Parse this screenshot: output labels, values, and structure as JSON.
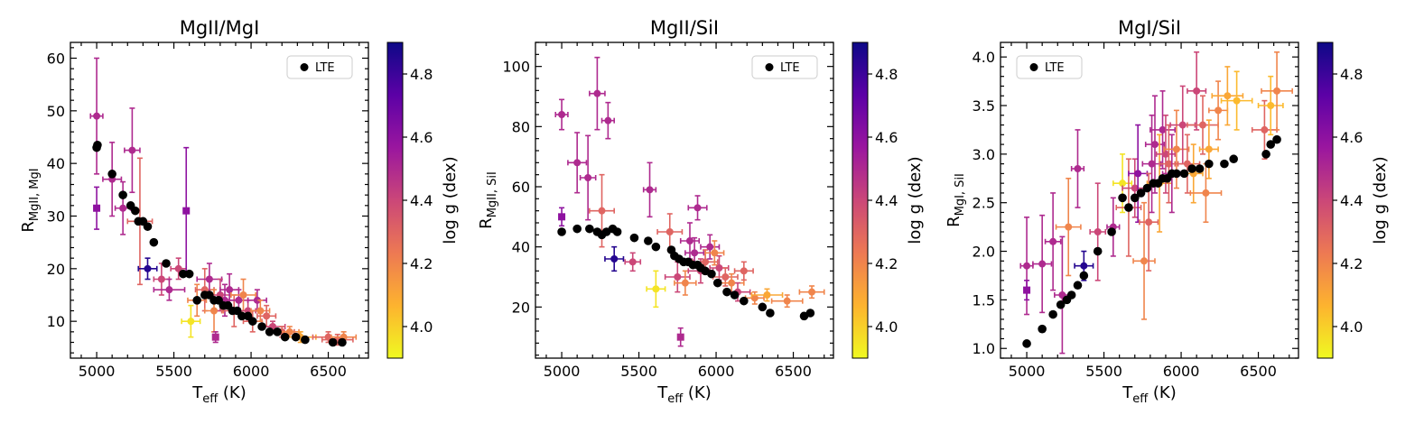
{
  "colorbar": {
    "label": "log g (dex)",
    "range": [
      3.9,
      4.9
    ],
    "ticks": [
      "4.0",
      "4.2",
      "4.4",
      "4.6",
      "4.8"
    ],
    "tick_values": [
      4.0,
      4.2,
      4.4,
      4.6,
      4.8
    ],
    "colormap": [
      "#f0f921",
      "#fdb32f",
      "#ed7953",
      "#cb4778",
      "#9a169f",
      "#5c01a6",
      "#0d0887"
    ]
  },
  "chart_data": [
    {
      "type": "scatter",
      "title": "MgII/MgI",
      "xlabel_main": "T",
      "xlabel_sub": "eff",
      "xlabel_unit": " (K)",
      "ylabel_main": "R",
      "ylabel_sub": "MgII, MgI",
      "xlim": [
        4830,
        6760
      ],
      "ylim": [
        3,
        63
      ],
      "xticks": [
        5000,
        5500,
        6000,
        6500
      ],
      "xticklabels": [
        "5000",
        "5500",
        "6000",
        "6500"
      ],
      "yticks": [
        10,
        20,
        30,
        40,
        50,
        60
      ],
      "yticklabels": [
        "10",
        "20",
        "30",
        "40",
        "50",
        "60"
      ],
      "legend": {
        "label": "LTE",
        "loc": "upper right"
      },
      "lte": {
        "x": [
          5000,
          5005,
          5100,
          5170,
          5220,
          5250,
          5270,
          5300,
          5330,
          5370,
          5450,
          5560,
          5600,
          5650,
          5700,
          5730,
          5760,
          5790,
          5820,
          5850,
          5880,
          5910,
          5940,
          5980,
          6010,
          6070,
          6120,
          6170,
          6220,
          6290,
          6350,
          6530,
          6590
        ],
        "y": [
          43,
          43.5,
          38,
          34,
          32,
          31,
          29,
          29,
          28,
          25,
          21,
          19,
          19,
          14,
          15,
          15,
          14,
          14,
          13,
          13,
          12,
          12,
          11,
          11,
          10,
          9,
          8,
          8,
          7,
          7,
          6.5,
          6,
          6
        ]
      },
      "obs": {
        "x": [
          5000,
          5000,
          5100,
          5170,
          5230,
          5280,
          5330,
          5420,
          5470,
          5530,
          5580,
          5610,
          5650,
          5700,
          5730,
          5760,
          5770,
          5800,
          5830,
          5860,
          5890,
          5920,
          5950,
          5980,
          6010,
          6040,
          6060,
          6100,
          6140,
          6200,
          6250,
          6320,
          6500,
          6560,
          6600
        ],
        "y": [
          49,
          31.5,
          37,
          31.5,
          42.5,
          29,
          20,
          18,
          16,
          20,
          31,
          10,
          14,
          16,
          18,
          12,
          7,
          15,
          14,
          16,
          12,
          14,
          15,
          12,
          10,
          14,
          12,
          11,
          9,
          8,
          8,
          7,
          7,
          6.5,
          7
        ],
        "xerr": [
          40,
          0,
          60,
          50,
          50,
          80,
          60,
          50,
          100,
          50,
          0,
          60,
          60,
          60,
          80,
          60,
          0,
          70,
          60,
          60,
          80,
          60,
          80,
          50,
          60,
          60,
          60,
          60,
          80,
          80,
          60,
          100,
          100,
          100,
          80
        ],
        "yerr": [
          11,
          4,
          7,
          5,
          8,
          12,
          2,
          3,
          2,
          2,
          12,
          3,
          3,
          4,
          3,
          4,
          1,
          3,
          3,
          3,
          3,
          2,
          3,
          2,
          2,
          2,
          2,
          2,
          1,
          1,
          1,
          1,
          1,
          1,
          1
        ],
        "logg": [
          4.5,
          4.6,
          4.5,
          4.5,
          4.5,
          4.3,
          4.85,
          4.4,
          4.5,
          4.4,
          4.6,
          3.95,
          4.2,
          4.3,
          4.5,
          4.2,
          4.5,
          4.4,
          4.5,
          4.5,
          4.3,
          4.5,
          4.2,
          4.4,
          4.3,
          4.5,
          4.2,
          4.3,
          4.4,
          4.3,
          4.2,
          4.1,
          4.3,
          4.3,
          4.2
        ]
      }
    },
    {
      "type": "scatter",
      "title": "MgII/SiI",
      "xlabel_main": "T",
      "xlabel_sub": "eff",
      "xlabel_unit": " (K)",
      "ylabel_main": "R",
      "ylabel_sub": "MgII, SiI",
      "xlim": [
        4830,
        6760
      ],
      "ylim": [
        3,
        108
      ],
      "xticks": [
        5000,
        5500,
        6000,
        6500
      ],
      "xticklabels": [
        "5000",
        "5500",
        "6000",
        "6500"
      ],
      "yticks": [
        20,
        40,
        60,
        80,
        100
      ],
      "yticklabels": [
        "20",
        "40",
        "60",
        "80",
        "100"
      ],
      "legend": {
        "label": "LTE",
        "loc": "upper right"
      },
      "lte": {
        "x": [
          5000,
          5100,
          5180,
          5230,
          5260,
          5290,
          5330,
          5360,
          5470,
          5560,
          5610,
          5710,
          5730,
          5760,
          5790,
          5820,
          5850,
          5880,
          5900,
          5930,
          5970,
          6010,
          6070,
          6120,
          6180,
          6300,
          6350,
          6570,
          6610
        ],
        "y": [
          45,
          46,
          46,
          45,
          44,
          45,
          46,
          45,
          43,
          42,
          40,
          39,
          37,
          36,
          35,
          35,
          34,
          34,
          33,
          32,
          31,
          28,
          25,
          24,
          22,
          20,
          18,
          17,
          18
        ]
      },
      "obs": {
        "x": [
          5000,
          5000,
          5100,
          5170,
          5230,
          5260,
          5300,
          5340,
          5460,
          5570,
          5610,
          5700,
          5750,
          5770,
          5800,
          5830,
          5860,
          5880,
          5900,
          5930,
          5960,
          5990,
          6020,
          6060,
          6100,
          6140,
          6180,
          6250,
          6330,
          6460,
          6620
        ],
        "y": [
          84,
          50,
          68,
          63,
          91,
          52,
          82,
          36,
          35,
          59,
          26,
          45,
          30,
          10,
          28,
          42,
          38,
          53,
          32,
          35,
          40,
          38,
          33,
          30,
          28,
          25,
          32,
          23,
          24,
          22,
          25
        ],
        "xerr": [
          40,
          0,
          60,
          50,
          50,
          80,
          40,
          60,
          50,
          40,
          60,
          80,
          80,
          0,
          70,
          60,
          60,
          60,
          80,
          80,
          60,
          60,
          60,
          80,
          80,
          80,
          60,
          60,
          100,
          100,
          80
        ],
        "yerr": [
          5,
          3,
          10,
          14,
          12,
          12,
          6,
          4,
          3,
          9,
          6,
          6,
          5,
          3,
          4,
          6,
          5,
          4,
          4,
          4,
          4,
          4,
          4,
          3,
          3,
          3,
          3,
          2,
          2,
          2,
          2
        ],
        "logg": [
          4.5,
          4.6,
          4.5,
          4.5,
          4.5,
          4.3,
          4.5,
          4.85,
          4.4,
          4.5,
          3.95,
          4.3,
          4.4,
          4.5,
          4.2,
          4.5,
          4.5,
          4.5,
          4.4,
          4.3,
          4.5,
          4.2,
          4.4,
          4.3,
          4.2,
          4.4,
          4.3,
          4.2,
          4.1,
          4.2,
          4.2
        ]
      }
    },
    {
      "type": "scatter",
      "title": "MgI/SiI",
      "xlabel_main": "T",
      "xlabel_sub": "eff",
      "xlabel_unit": " (K)",
      "ylabel_main": "R",
      "ylabel_sub": "MgI, SiI",
      "xlim": [
        4830,
        6760
      ],
      "ylim": [
        0.9,
        4.15
      ],
      "xticks": [
        5000,
        5500,
        6000,
        6500
      ],
      "xticklabels": [
        "5000",
        "5500",
        "6000",
        "6500"
      ],
      "yticks": [
        1.0,
        1.5,
        2.0,
        2.5,
        3.0,
        3.5,
        4.0
      ],
      "yticklabels": [
        "1.0",
        "1.5",
        "2.0",
        "2.5",
        "3.0",
        "3.5",
        "4.0"
      ],
      "legend": {
        "label": "LTE",
        "loc": "upper left"
      },
      "lte": {
        "x": [
          5000,
          5100,
          5170,
          5220,
          5260,
          5290,
          5330,
          5370,
          5460,
          5550,
          5620,
          5660,
          5700,
          5740,
          5780,
          5820,
          5850,
          5880,
          5910,
          5940,
          5970,
          6020,
          6070,
          6120,
          6180,
          6280,
          6340,
          6550,
          6580,
          6620
        ],
        "y": [
          1.05,
          1.2,
          1.35,
          1.45,
          1.5,
          1.55,
          1.65,
          1.75,
          2.0,
          2.2,
          2.55,
          2.45,
          2.55,
          2.6,
          2.65,
          2.7,
          2.7,
          2.75,
          2.75,
          2.8,
          2.8,
          2.8,
          2.85,
          2.85,
          2.9,
          2.9,
          2.95,
          3.0,
          3.1,
          3.15
        ]
      },
      "obs": {
        "x": [
          5000,
          5000,
          5100,
          5170,
          5230,
          5270,
          5330,
          5370,
          5460,
          5560,
          5620,
          5660,
          5700,
          5720,
          5760,
          5790,
          5810,
          5830,
          5860,
          5880,
          5900,
          5920,
          5940,
          5970,
          6010,
          6040,
          6080,
          6100,
          6140,
          6160,
          6180,
          6240,
          6300,
          6360,
          6540,
          6580,
          6620
        ],
        "y": [
          1.85,
          1.6,
          1.87,
          2.1,
          1.55,
          2.25,
          2.85,
          1.85,
          2.2,
          2.25,
          2.7,
          2.45,
          2.65,
          2.8,
          1.9,
          2.3,
          2.9,
          3.1,
          2.7,
          3.25,
          3.0,
          2.9,
          2.8,
          3.05,
          3.3,
          2.9,
          2.8,
          3.65,
          3.3,
          2.6,
          3.05,
          3.45,
          3.6,
          3.55,
          3.25,
          3.5,
          3.65
        ],
        "xerr": [
          40,
          0,
          60,
          50,
          50,
          80,
          40,
          60,
          50,
          40,
          60,
          80,
          80,
          60,
          70,
          60,
          60,
          60,
          80,
          80,
          60,
          60,
          60,
          80,
          80,
          80,
          60,
          60,
          100,
          100,
          60,
          60,
          100,
          100,
          80,
          80,
          100
        ],
        "yerr": [
          0.5,
          0.1,
          0.5,
          0.5,
          0.6,
          0.5,
          0.4,
          0.15,
          0.5,
          0.3,
          0.3,
          0.5,
          0.3,
          0.5,
          0.6,
          0.5,
          0.5,
          0.5,
          0.5,
          0.4,
          0.4,
          0.4,
          0.4,
          0.4,
          0.4,
          0.3,
          0.3,
          0.4,
          0.3,
          0.3,
          0.3,
          0.3,
          0.3,
          0.3,
          0.3,
          0.3,
          0.4
        ],
        "logg": [
          4.5,
          4.6,
          4.5,
          4.5,
          4.5,
          4.2,
          4.5,
          4.85,
          4.4,
          4.5,
          3.95,
          4.3,
          4.4,
          4.6,
          4.2,
          4.3,
          4.5,
          4.5,
          4.1,
          4.5,
          4.4,
          4.3,
          4.5,
          4.2,
          4.4,
          4.3,
          4.1,
          4.4,
          4.3,
          4.2,
          4.1,
          4.2,
          4.1,
          4.05,
          4.3,
          4.05,
          4.2
        ]
      }
    }
  ]
}
